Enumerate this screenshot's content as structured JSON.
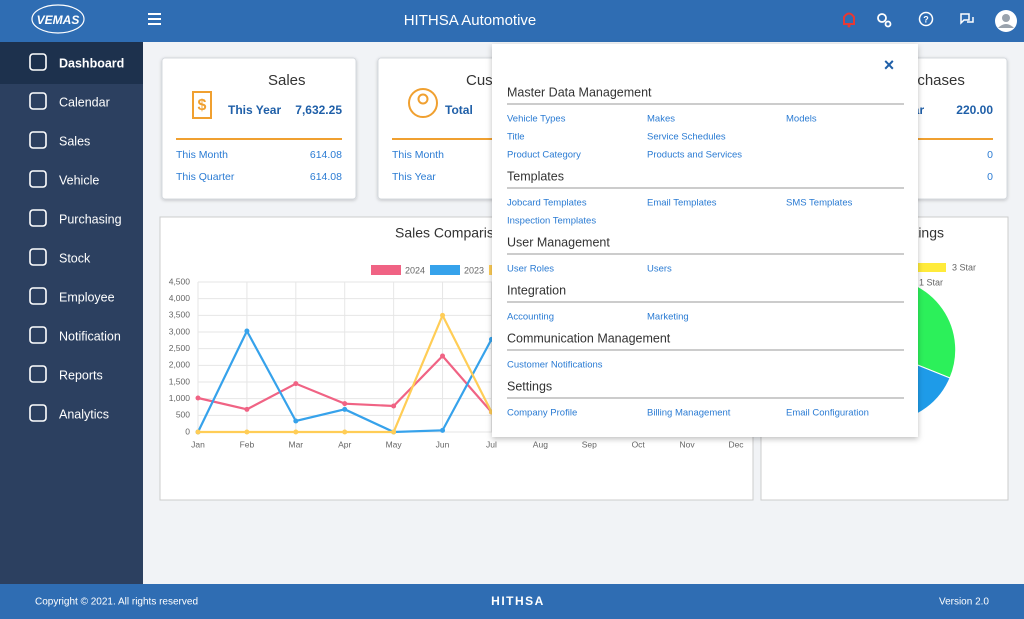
{
  "header": {
    "logo": "VEMAS",
    "title": "HITHSA Automotive"
  },
  "sidebar": [
    "Dashboard",
    "Calendar",
    "Sales",
    "Vehicle",
    "Purchasing",
    "Stock",
    "Employee",
    "Notification",
    "Reports",
    "Analytics"
  ],
  "cards": [
    {
      "title": "Sales",
      "main_label": "This Year",
      "main_value": "7,632.25",
      "rows": [
        {
          "label": "This Month",
          "value": "614.08"
        },
        {
          "label": "This Quarter",
          "value": "614.08"
        }
      ]
    },
    {
      "title": "Customers",
      "main_label": "Total",
      "rows": [
        {
          "label": "This Month"
        },
        {
          "label": "This Year"
        }
      ]
    },
    {
      "title": "Purchases",
      "main_label": "This Year",
      "main_value": "220.00",
      "rows": [
        {
          "value": "0"
        },
        {
          "value": "0"
        }
      ]
    }
  ],
  "chart_data": {
    "type": "line",
    "title": "Sales Comparison",
    "categories": [
      "Jan",
      "Feb",
      "Mar",
      "Apr",
      "May",
      "Jun",
      "Jul",
      "Aug",
      "Sep",
      "Oct",
      "Nov",
      "Dec"
    ],
    "series": [
      {
        "name": "2024",
        "color": "#f06384",
        "values": [
          1020,
          680,
          1450,
          850,
          780,
          2280,
          600,
          null,
          null,
          null,
          null,
          null
        ]
      },
      {
        "name": "2023",
        "color": "#36a2eb",
        "values": [
          0,
          3030,
          330,
          680,
          0,
          50,
          2780,
          null,
          null,
          null,
          null,
          null
        ]
      },
      {
        "color": "#ffcd56",
        "values": [
          0,
          0,
          0,
          0,
          0,
          3500,
          600,
          null,
          null,
          null,
          null,
          null
        ]
      }
    ],
    "ylim": [
      0,
      4500
    ],
    "yticks": [
      0,
      500,
      {
        "value": 1000,
        "label": "1,000"
      },
      {
        "value": 1500,
        "label": "1,500"
      },
      {
        "value": 2000,
        "label": "2,000"
      },
      {
        "value": 2500,
        "label": "2,500"
      },
      {
        "value": 3000,
        "label": "3,000"
      },
      {
        "value": 3500,
        "label": "3,500"
      },
      {
        "value": 4000,
        "label": "4,000"
      },
      {
        "value": 4500,
        "label": "4,500"
      }
    ],
    "grid": true
  },
  "ratings": {
    "title": "Ratings",
    "legend": [
      "3 Star",
      "1 Star"
    ]
  },
  "menu": {
    "sections": [
      {
        "title": "Master Data Management",
        "links": [
          [
            "Vehicle Types",
            "Makes",
            "Models"
          ],
          [
            "Title",
            "Service Schedules"
          ],
          [
            "Product Category",
            "Products and Services"
          ]
        ]
      },
      {
        "title": "Templates",
        "links": [
          [
            "Jobcard Templates",
            "Email Templates",
            "SMS Templates"
          ],
          [
            "Inspection Templates"
          ]
        ]
      },
      {
        "title": "User Management",
        "links": [
          [
            "User Roles",
            "Users"
          ]
        ]
      },
      {
        "title": "Integration",
        "links": [
          [
            "Accounting",
            "Marketing"
          ]
        ]
      },
      {
        "title": "Communication Management",
        "links": [
          [
            "Customer Notifications"
          ]
        ]
      },
      {
        "title": "Settings",
        "links": [
          [
            "Company Profile",
            "Billing Management",
            "Email Configuration"
          ]
        ]
      }
    ]
  },
  "footer": {
    "copyright": "Copyright © 2021. All rights reserved",
    "brand": "HITHSA",
    "version": "Version 2.0"
  }
}
